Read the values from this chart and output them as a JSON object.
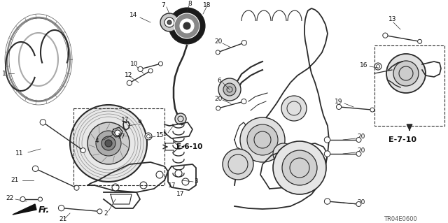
{
  "background_color": "#ffffff",
  "fig_width": 6.4,
  "fig_height": 3.19,
  "dpi": 100,
  "line_color": "#2a2a2a",
  "label_color": "#111111",
  "label_fontsize": 6.5,
  "tr_code": "TR04E0600",
  "e610_label": "E-6-10",
  "e710_label": "E-7-10",
  "fr_label": "Fr."
}
